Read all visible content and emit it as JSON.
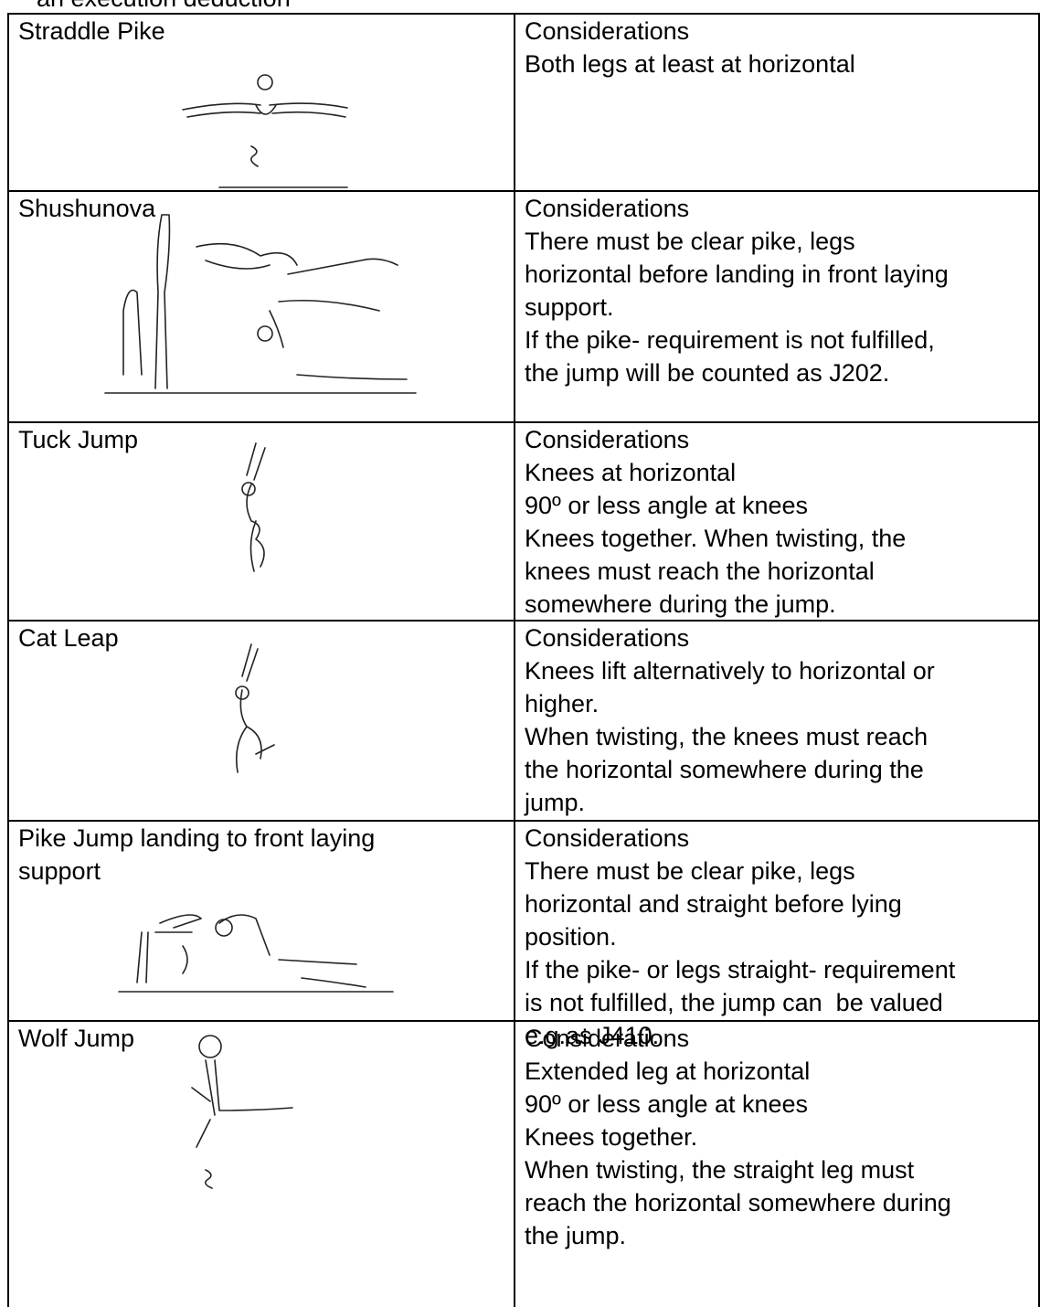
{
  "header": {
    "text": "an execution deduction"
  },
  "table": {
    "rows": [
      {
        "name": [
          "Straddle Pike"
        ],
        "considerations": [
          "Considerations",
          "Both legs at least at horizontal"
        ]
      },
      {
        "name": [
          "Shushunova"
        ],
        "considerations": [
          "Considerations",
          "There must be clear pike, legs",
          "horizontal before landing in front laying",
          "support.",
          "If the pike- requirement is not fulfilled,",
          "the jump will be counted as J202."
        ]
      },
      {
        "name": [
          "Tuck Jump"
        ],
        "considerations": [
          "Considerations",
          "Knees at horizontal",
          "90º or less angle at knees",
          "Knees together. When twisting, the",
          "knees must reach the horizontal",
          "somewhere during the jump."
        ]
      },
      {
        "name": [
          "Cat Leap"
        ],
        "considerations": [
          "Considerations",
          "Knees lift alternatively to horizontal or",
          "higher.",
          "When twisting, the knees must reach",
          "the horizontal somewhere during the",
          "jump."
        ]
      },
      {
        "name": [
          "Pike Jump landing to front laying",
          "support"
        ],
        "considerations": [
          "Considerations",
          "There must be clear pike, legs",
          "horizontal and straight before lying",
          "position.",
          "If the pike- or legs straight- requirement",
          "is not fulfilled, the jump can  be valued",
          "e.g.as J410."
        ]
      },
      {
        "name": [
          "Wolf Jump"
        ],
        "considerations": [
          "Considerations",
          "Extended leg at horizontal",
          "90º or less angle at knees",
          "Knees together.",
          "When twisting, the straight leg must",
          "reach the horizontal somewhere during",
          "the jump."
        ]
      }
    ]
  }
}
